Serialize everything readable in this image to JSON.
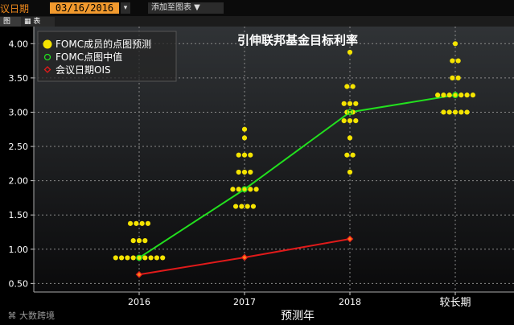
{
  "toolbar": {
    "label": "议日期",
    "date_value": "03/16/2016",
    "dropdown_glyph": "▾",
    "add_button": "添加至图表 ▼"
  },
  "tabs": [
    {
      "label": "图"
    },
    {
      "label": "表"
    }
  ],
  "watermark": {
    "text": "大数跨境"
  },
  "colors": {
    "background": "#000000",
    "dots": "#f5e400",
    "median": "#22e01e",
    "ois": "#e01a1a",
    "grid": "#8a8a8a"
  },
  "chart_data": {
    "type": "scatter",
    "title": "引伸联邦基金目标利率",
    "xlabel": "预测年",
    "ylabel": "",
    "categories": [
      "2016",
      "2017",
      "2018",
      "较长期"
    ],
    "yticks": [
      "4.00",
      "3.50",
      "3.00",
      "2.50",
      "2.00",
      "1.50",
      "1.00",
      "0.50"
    ],
    "ylim": [
      0.375,
      4.25
    ],
    "grid": true,
    "legend_position": "top-left",
    "legend": [
      {
        "label": "FOMC成员的点图预测",
        "marker": "dot"
      },
      {
        "label": "FOMC点图中值",
        "marker": "ring"
      },
      {
        "label": "会议日期OIS",
        "marker": "diamond"
      }
    ],
    "dot_plot": [
      {
        "category": "2016",
        "levels": [
          {
            "rate": 1.375,
            "count": 4
          },
          {
            "rate": 1.125,
            "count": 3
          },
          {
            "rate": 0.875,
            "count": 9
          }
        ]
      },
      {
        "category": "2017",
        "levels": [
          {
            "rate": 2.75,
            "count": 1
          },
          {
            "rate": 2.625,
            "count": 1
          },
          {
            "rate": 2.375,
            "count": 3
          },
          {
            "rate": 2.125,
            "count": 3
          },
          {
            "rate": 1.875,
            "count": 5
          },
          {
            "rate": 1.625,
            "count": 4
          }
        ]
      },
      {
        "category": "2018",
        "levels": [
          {
            "rate": 3.875,
            "count": 1
          },
          {
            "rate": 3.375,
            "count": 2
          },
          {
            "rate": 3.125,
            "count": 3
          },
          {
            "rate": 3.0,
            "count": 2
          },
          {
            "rate": 2.875,
            "count": 3
          },
          {
            "rate": 2.625,
            "count": 1
          },
          {
            "rate": 2.375,
            "count": 2
          },
          {
            "rate": 2.125,
            "count": 1
          }
        ]
      },
      {
        "category": "较长期",
        "levels": [
          {
            "rate": 4.0,
            "count": 1
          },
          {
            "rate": 3.75,
            "count": 2
          },
          {
            "rate": 3.5,
            "count": 2
          },
          {
            "rate": 3.25,
            "count": 7
          },
          {
            "rate": 3.0,
            "count": 5
          }
        ]
      }
    ],
    "series": [
      {
        "name": "FOMC点图中值",
        "values": [
          0.875,
          1.875,
          3.0,
          3.25
        ]
      },
      {
        "name": "会议日期OIS",
        "values": [
          0.63,
          0.88,
          1.15,
          null
        ]
      }
    ]
  }
}
